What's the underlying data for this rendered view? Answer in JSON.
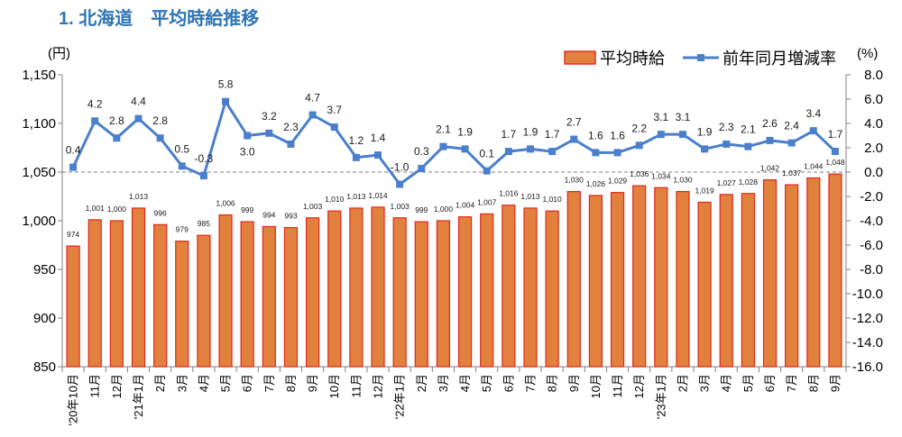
{
  "colors": {
    "title": "#2e75b6",
    "bar_fill": "#e2813e",
    "bar_stroke": "#e3261d",
    "line": "#4a7fcb",
    "axis": "#808080",
    "reference_line": "#7f7f7f"
  },
  "chart_data": {
    "type": "bar",
    "title": "1. 北海道　平均時給推移",
    "categories": [
      "'20年10月",
      "11月",
      "12月",
      "'21年1月",
      "2月",
      "3月",
      "4月",
      "5月",
      "6月",
      "7月",
      "8月",
      "9月",
      "10月",
      "11月",
      "12月",
      "'22年1月",
      "2月",
      "3月",
      "4月",
      "5月",
      "6月",
      "7月",
      "8月",
      "9月",
      "10月",
      "11月",
      "12月",
      "'23年1月",
      "2月",
      "3月",
      "4月",
      "5月",
      "6月",
      "7月",
      "8月",
      "9月"
    ],
    "series": [
      {
        "name": "平均時給",
        "type": "bar",
        "values": [
          974,
          1001,
          1000,
          1013,
          996,
          979,
          985,
          1006,
          999,
          994,
          993,
          1003,
          1010,
          1013,
          1014,
          1003,
          999,
          1000,
          1004,
          1007,
          1016,
          1013,
          1010,
          1030,
          1026,
          1029,
          1036,
          1034,
          1030,
          1019,
          1027,
          1028,
          1042,
          1037,
          1044,
          1048
        ],
        "labels": [
          "974",
          "1,001",
          "1,000",
          "1,013",
          "996",
          "979",
          "985",
          "1,006",
          "999",
          "994",
          "993",
          "1,003",
          "1,010",
          "1,013",
          "1,014",
          "1,003",
          "999",
          "1,000",
          "1,004",
          "1,007",
          "1,016",
          "1,013",
          "1,010",
          "1,030",
          "1,026",
          "1,029",
          "1,036",
          "1,034",
          "1,030",
          "1,019",
          "1,027",
          "1,028",
          "1,042",
          "1,037",
          "1,044",
          "1,048"
        ]
      },
      {
        "name": "前年同月増減率",
        "type": "line",
        "values": [
          0.4,
          4.2,
          2.8,
          4.4,
          2.8,
          0.5,
          -0.3,
          5.8,
          3.0,
          3.2,
          2.3,
          4.7,
          3.7,
          1.2,
          1.4,
          -1.0,
          0.3,
          2.1,
          1.9,
          0.1,
          1.7,
          1.9,
          1.7,
          2.7,
          1.6,
          1.6,
          2.2,
          3.1,
          3.1,
          1.9,
          2.3,
          2.1,
          2.6,
          2.4,
          3.4,
          1.7
        ],
        "labels": [
          "0.4",
          "4.2",
          "2.8",
          "4.4",
          "2.8",
          "0.5",
          "-0.3",
          "5.8",
          "3.0",
          "3.2",
          "2.3",
          "4.7",
          "3.7",
          "1.2",
          "1.4",
          "-1.0",
          "0.3",
          "2.1",
          "1.9",
          "0.1",
          "1.7",
          "1.9",
          "1.7",
          "2.7",
          "1.6",
          "1.6",
          "2.2",
          "3.1",
          "3.1",
          "1.9",
          "2.3",
          "2.1",
          "2.6",
          "2.4",
          "3.4",
          "1.7"
        ]
      }
    ],
    "y_left": {
      "unit": "(円)",
      "min": 850,
      "max": 1150,
      "step": 50,
      "tick_labels": [
        "850",
        "900",
        "950",
        "1,000",
        "1,050",
        "1,100",
        "1,150"
      ]
    },
    "y_right": {
      "unit": "(%)",
      "min": -16,
      "max": 8,
      "step": 2,
      "tick_labels": [
        "-16.0",
        "-14.0",
        "-12.0",
        "-10.0",
        "-8.0",
        "-6.0",
        "-4.0",
        "-2.0",
        "0.0",
        "2.0",
        "4.0",
        "6.0",
        "8.0"
      ]
    },
    "reference_line": {
      "value": 0
    },
    "legend_position": "top-right",
    "grid": false
  }
}
